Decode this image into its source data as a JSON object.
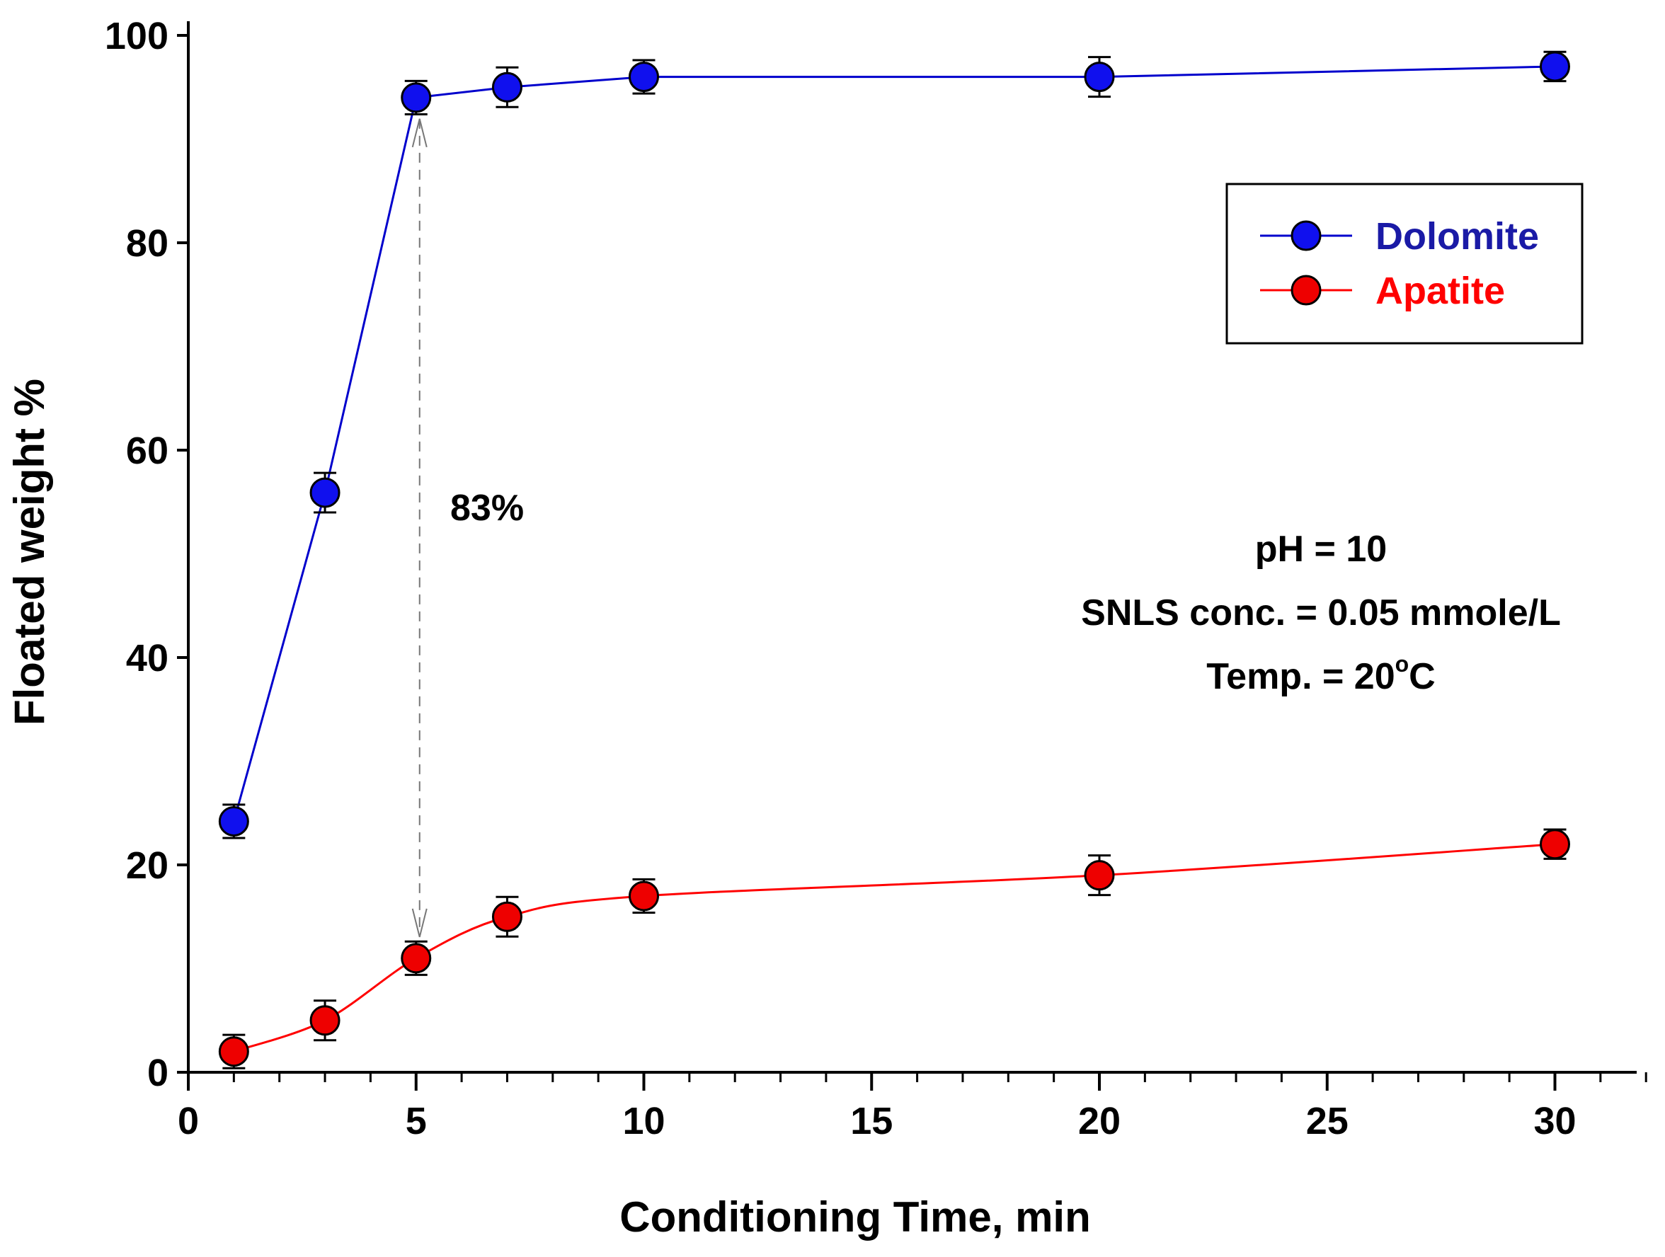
{
  "chart_data": {
    "type": "line",
    "title": "",
    "xlabel": "Conditioning Time, min",
    "ylabel": "Floated weight %",
    "xlim": [
      0,
      32
    ],
    "ylim": [
      0,
      100
    ],
    "xticks": [
      0,
      5,
      10,
      15,
      20,
      25,
      30
    ],
    "xticks_minor_step": 1,
    "yticks": [
      0,
      20,
      40,
      60,
      80,
      100
    ],
    "grid": false,
    "legend_position": "top-right",
    "series": [
      {
        "name": "Dolomite",
        "color": "#0000cc",
        "marker_color": "#1010ee",
        "x": [
          1,
          3,
          5,
          7,
          10,
          20,
          30
        ],
        "y": [
          24.2,
          55.9,
          94.0,
          95.0,
          96.0,
          96.0,
          97.0
        ],
        "error": [
          1.2,
          1.5,
          1.2,
          1.5,
          1.2,
          1.5,
          1.0
        ]
      },
      {
        "name": "Apatite",
        "color": "#ff0000",
        "marker_color": "#ee0000",
        "x": [
          1,
          3,
          5,
          7,
          10,
          20,
          30
        ],
        "y": [
          2.0,
          5.0,
          11.0,
          15.0,
          17.0,
          19.0,
          22.0
        ],
        "error": [
          1.2,
          1.5,
          1.2,
          1.5,
          1.2,
          1.5,
          1.0
        ]
      }
    ],
    "annotations": {
      "difference_label": "83%",
      "difference_at_x": 5,
      "conditions": {
        "ph": "pH = 10",
        "snls": "SNLS conc. = 0.05 mmole/L",
        "temp_prefix": "Temp. = 20",
        "temp_sup": "o",
        "temp_suffix": "C"
      }
    }
  }
}
